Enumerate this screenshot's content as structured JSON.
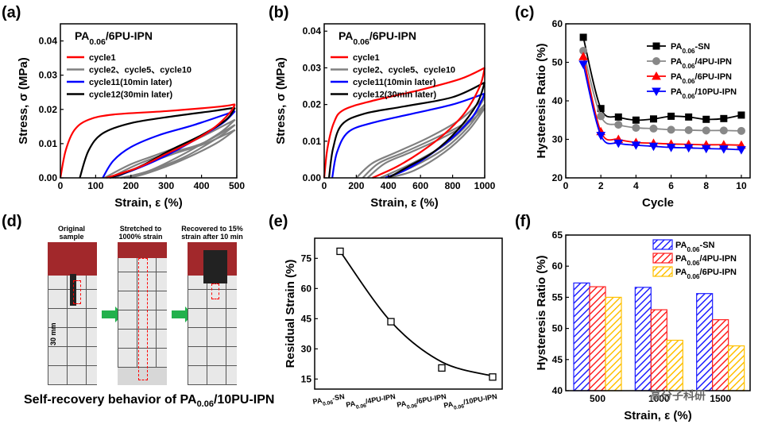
{
  "panels": {
    "a": {
      "label": "(a)"
    },
    "b": {
      "label": "(b)"
    },
    "c": {
      "label": "(c)"
    },
    "d": {
      "label": "(d)"
    },
    "e": {
      "label": "(e)"
    },
    "f": {
      "label": "(f)"
    }
  },
  "photo": {
    "captions": [
      "Original sample",
      "Stretched to 1000% strain",
      "Recovered to 15% strain after 10 min"
    ],
    "scale_label": "30 mm",
    "title": "Self-recovery behavior of PA0.06/10PU-IPN"
  },
  "watermark": "高分子科研",
  "chart_data": [
    {
      "id": "a",
      "type": "line",
      "title": "PA0.06/6PU-IPN",
      "xlabel": "Strain, ε (%)",
      "ylabel": "Stress, σ (MPa)",
      "xlim": [
        0,
        500
      ],
      "ylim": [
        0,
        0.045
      ],
      "xticks": [
        0,
        100,
        200,
        300,
        400,
        500
      ],
      "yticks": [
        0.0,
        0.01,
        0.02,
        0.03,
        0.04
      ],
      "legend": [
        {
          "name": "cycle1",
          "color": "#ff0000"
        },
        {
          "name": "cycle2、cycle5、cycle10",
          "color": "#808080"
        },
        {
          "name": "cycle11(10min later)",
          "color": "#0000ff"
        },
        {
          "name": "cycle12(30min later)",
          "color": "#000000"
        }
      ],
      "series": [
        {
          "name": "cycle1",
          "color": "#ff0000",
          "load": [
            [
              0,
              0
            ],
            [
              15,
              0.008
            ],
            [
              40,
              0.014
            ],
            [
              80,
              0.017
            ],
            [
              150,
              0.0185
            ],
            [
              300,
              0.0195
            ],
            [
              450,
              0.0208
            ],
            [
              495,
              0.0215
            ]
          ],
          "unload": [
            [
              495,
              0.0215
            ],
            [
              480,
              0.019
            ],
            [
              440,
              0.015
            ],
            [
              380,
              0.011
            ],
            [
              300,
              0.007
            ],
            [
              220,
              0.003
            ],
            [
              130,
              0
            ]
          ]
        },
        {
          "name": "cycle2",
          "color": "#808080",
          "load": [
            [
              125,
              0
            ],
            [
              200,
              0.004
            ],
            [
              280,
              0.007
            ],
            [
              380,
              0.011
            ],
            [
              495,
              0.017
            ]
          ],
          "unload": [
            [
              495,
              0.017
            ],
            [
              450,
              0.013
            ],
            [
              350,
              0.007
            ],
            [
              250,
              0.002
            ],
            [
              170,
              0
            ]
          ]
        },
        {
          "name": "cycle5",
          "color": "#808080",
          "load": [
            [
              140,
              0
            ],
            [
              220,
              0.004
            ],
            [
              300,
              0.007
            ],
            [
              400,
              0.01
            ],
            [
              495,
              0.0155
            ]
          ],
          "unload": [
            [
              495,
              0.0155
            ],
            [
              450,
              0.012
            ],
            [
              350,
              0.006
            ],
            [
              250,
              0.002
            ],
            [
              180,
              0
            ]
          ]
        },
        {
          "name": "cycle10",
          "color": "#808080",
          "load": [
            [
              155,
              0
            ],
            [
              240,
              0.004
            ],
            [
              320,
              0.007
            ],
            [
              410,
              0.01
            ],
            [
              495,
              0.014
            ]
          ],
          "unload": [
            [
              495,
              0.014
            ],
            [
              440,
              0.01
            ],
            [
              340,
              0.005
            ],
            [
              250,
              0.0015
            ],
            [
              195,
              0
            ]
          ]
        },
        {
          "name": "cycle11",
          "color": "#0000ff",
          "load": [
            [
              120,
              0
            ],
            [
              150,
              0.005
            ],
            [
              200,
              0.009
            ],
            [
              280,
              0.0125
            ],
            [
              380,
              0.0155
            ],
            [
              495,
              0.0195
            ]
          ],
          "unload": [
            [
              495,
              0.0195
            ],
            [
              460,
              0.016
            ],
            [
              380,
              0.011
            ],
            [
              290,
              0.006
            ],
            [
              200,
              0.002
            ],
            [
              140,
              0
            ]
          ]
        },
        {
          "name": "cycle12",
          "color": "#000000",
          "load": [
            [
              55,
              0
            ],
            [
              80,
              0.008
            ],
            [
              120,
              0.013
            ],
            [
              200,
              0.016
            ],
            [
              320,
              0.018
            ],
            [
              430,
              0.0195
            ],
            [
              495,
              0.0205
            ]
          ],
          "unload": [
            [
              495,
              0.0205
            ],
            [
              470,
              0.017
            ],
            [
              400,
              0.0125
            ],
            [
              310,
              0.008
            ],
            [
              220,
              0.003
            ],
            [
              140,
              0
            ]
          ]
        }
      ]
    },
    {
      "id": "b",
      "type": "line",
      "title": "PA0.06/6PU-IPN",
      "xlabel": "Strain, ε (%)",
      "ylabel": "Stress, σ (MPa)",
      "xlim": [
        0,
        1000
      ],
      "ylim": [
        0,
        0.042
      ],
      "xticks": [
        0,
        200,
        400,
        600,
        800,
        1000
      ],
      "yticks": [
        0.0,
        0.01,
        0.02,
        0.03,
        0.04
      ],
      "legend": [
        {
          "name": "cycle1",
          "color": "#ff0000"
        },
        {
          "name": "cycle2、cycle5、cycle10",
          "color": "#808080"
        },
        {
          "name": "cycle11(10min later)",
          "color": "#0000ff"
        },
        {
          "name": "cycle12(30min later)",
          "color": "#000000"
        }
      ],
      "series": [
        {
          "name": "cycle1",
          "color": "#ff0000",
          "load": [
            [
              0,
              0
            ],
            [
              20,
              0.008
            ],
            [
              60,
              0.015
            ],
            [
              120,
              0.0185
            ],
            [
              300,
              0.021
            ],
            [
              600,
              0.024
            ],
            [
              850,
              0.027
            ],
            [
              1000,
              0.03
            ]
          ],
          "unload": [
            [
              1000,
              0.03
            ],
            [
              970,
              0.025
            ],
            [
              880,
              0.018
            ],
            [
              750,
              0.012
            ],
            [
              600,
              0.007
            ],
            [
              450,
              0.003
            ],
            [
              300,
              0
            ]
          ]
        },
        {
          "name": "cycle2",
          "color": "#808080",
          "load": [
            [
              200,
              0
            ],
            [
              300,
              0.004
            ],
            [
              450,
              0.007
            ],
            [
              650,
              0.011
            ],
            [
              850,
              0.016
            ],
            [
              1000,
              0.022
            ]
          ],
          "unload": [
            [
              1000,
              0.022
            ],
            [
              900,
              0.015
            ],
            [
              750,
              0.009
            ],
            [
              550,
              0.004
            ],
            [
              350,
              0
            ]
          ]
        },
        {
          "name": "cycle5",
          "color": "#808080",
          "load": [
            [
              240,
              0
            ],
            [
              340,
              0.004
            ],
            [
              500,
              0.007
            ],
            [
              700,
              0.011
            ],
            [
              880,
              0.015
            ],
            [
              1000,
              0.02
            ]
          ],
          "unload": [
            [
              1000,
              0.02
            ],
            [
              900,
              0.014
            ],
            [
              750,
              0.008
            ],
            [
              550,
              0.003
            ],
            [
              380,
              0
            ]
          ]
        },
        {
          "name": "cycle10",
          "color": "#808080",
          "load": [
            [
              270,
              0
            ],
            [
              380,
              0.004
            ],
            [
              540,
              0.007
            ],
            [
              740,
              0.011
            ],
            [
              900,
              0.015
            ],
            [
              1000,
              0.019
            ]
          ],
          "unload": [
            [
              1000,
              0.019
            ],
            [
              900,
              0.013
            ],
            [
              750,
              0.007
            ],
            [
              560,
              0.002
            ],
            [
              400,
              0
            ]
          ]
        },
        {
          "name": "cycle11",
          "color": "#0000ff",
          "load": [
            [
              50,
              0
            ],
            [
              80,
              0.007
            ],
            [
              150,
              0.0125
            ],
            [
              300,
              0.015
            ],
            [
              550,
              0.0175
            ],
            [
              800,
              0.02
            ],
            [
              1000,
              0.023
            ]
          ],
          "unload": [
            [
              1000,
              0.023
            ],
            [
              930,
              0.017
            ],
            [
              800,
              0.011
            ],
            [
              650,
              0.006
            ],
            [
              500,
              0.002
            ],
            [
              380,
              0
            ]
          ]
        },
        {
          "name": "cycle12",
          "color": "#000000",
          "load": [
            [
              30,
              0
            ],
            [
              55,
              0.008
            ],
            [
              110,
              0.0145
            ],
            [
              250,
              0.0175
            ],
            [
              500,
              0.0195
            ],
            [
              800,
              0.022
            ],
            [
              1000,
              0.026
            ]
          ],
          "unload": [
            [
              1000,
              0.026
            ],
            [
              950,
              0.02
            ],
            [
              830,
              0.013
            ],
            [
              680,
              0.007
            ],
            [
              520,
              0.003
            ],
            [
              400,
              0
            ]
          ]
        }
      ]
    },
    {
      "id": "c",
      "type": "line",
      "xlabel": "Cycle",
      "ylabel": "Hysteresis Ratio (%)",
      "xlim": [
        0,
        10.5
      ],
      "ylim": [
        20,
        60
      ],
      "xticks": [
        0,
        2,
        4,
        6,
        8,
        10
      ],
      "yticks": [
        20,
        30,
        40,
        50,
        60
      ],
      "x": [
        1,
        2,
        3,
        4,
        5,
        6,
        7,
        8,
        9,
        10
      ],
      "series": [
        {
          "name": "PA0.06-SN",
          "color": "#000000",
          "marker": "square",
          "values": [
            56.5,
            38,
            35.8,
            35,
            35.3,
            36,
            35.8,
            35.2,
            35.4,
            36.3
          ]
        },
        {
          "name": "PA0.06/4PU-IPN",
          "color": "#888888",
          "marker": "circle",
          "values": [
            53,
            36,
            33.8,
            33,
            32.8,
            32.5,
            32.4,
            32.3,
            32.3,
            32.2
          ]
        },
        {
          "name": "PA0.06/6PU-IPN",
          "color": "#ff0000",
          "marker": "triangle-up",
          "values": [
            51.5,
            32,
            30,
            29.2,
            29,
            28.8,
            28.7,
            28.6,
            28.6,
            28.5
          ]
        },
        {
          "name": "PA0.06/10PU-IPN",
          "color": "#0000ff",
          "marker": "triangle-down",
          "values": [
            49.5,
            31,
            29,
            28.5,
            28.2,
            27.9,
            27.8,
            27.6,
            27.5,
            27.3
          ]
        }
      ]
    },
    {
      "id": "e",
      "type": "scatter",
      "xlabel": "",
      "ylabel": "Residual Strain (%)",
      "ylim": [
        10,
        85
      ],
      "yticks": [
        15,
        30,
        45,
        60,
        75
      ],
      "categories": [
        "PA0.06-SN",
        "PA0.06/4PU-IPN",
        "PA0.06/6PU-IPN",
        "PA0.06/10PU-IPN"
      ],
      "values": [
        78.5,
        43.5,
        20.5,
        16
      ],
      "fit": [
        78.5,
        43.5,
        23.5,
        16.5
      ]
    },
    {
      "id": "f",
      "type": "bar",
      "xlabel": "Strain, ε (%)",
      "ylabel": "Hysteresis Ratio (%)",
      "ylim": [
        40,
        65
      ],
      "yticks": [
        40,
        45,
        50,
        55,
        60,
        65
      ],
      "categories": [
        "500",
        "1000",
        "1500"
      ],
      "series": [
        {
          "name": "PA0.06-SN",
          "color": "#1f1fff",
          "values": [
            57.3,
            56.6,
            55.6
          ]
        },
        {
          "name": "PA0.06/4PU-IPN",
          "color": "#ff2020",
          "values": [
            56.7,
            53,
            51.4
          ]
        },
        {
          "name": "PA0.06/6PU-IPN",
          "color": "#ffc000",
          "values": [
            55,
            48.1,
            47.2
          ]
        }
      ]
    }
  ]
}
